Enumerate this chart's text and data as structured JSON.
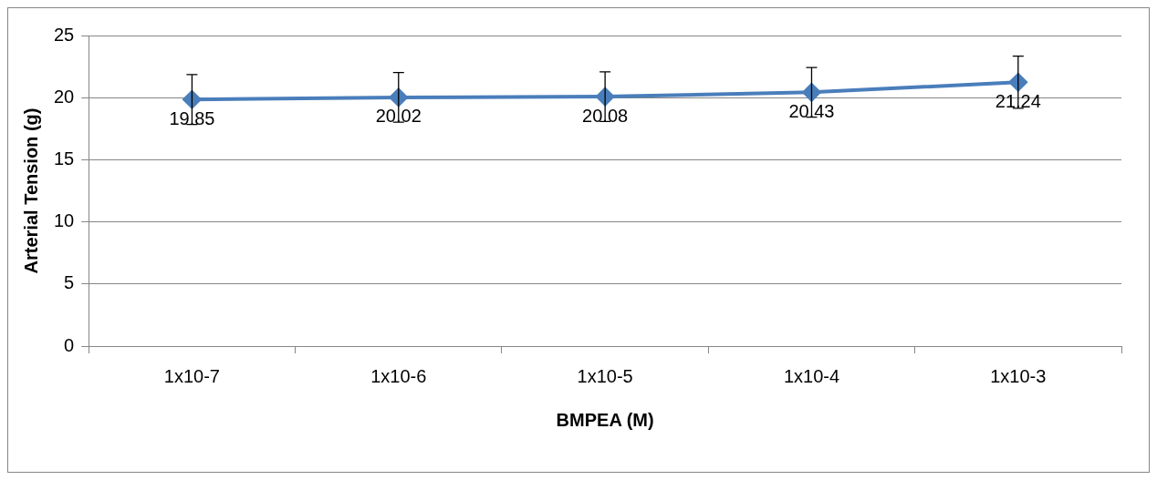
{
  "chart_data": {
    "type": "line",
    "xlabel": "BMPEA (M)",
    "ylabel": "Arterial Tension (g)",
    "categories": [
      "1x10-7",
      "1x10-6",
      "1x10-5",
      "1x10-4",
      "1x10-3"
    ],
    "series": [
      {
        "color": "#4a7ebb",
        "values": [
          19.85,
          20.02,
          20.08,
          20.43,
          21.24
        ],
        "errors": [
          2,
          2,
          2,
          2,
          2.1
        ]
      }
    ],
    "ylim": [
      0,
      25
    ],
    "yticks": [
      0,
      5,
      10,
      15,
      20,
      25
    ],
    "grid": "y",
    "legend": false,
    "marker": "diamond",
    "line_style": "solid",
    "data_labels": true
  }
}
